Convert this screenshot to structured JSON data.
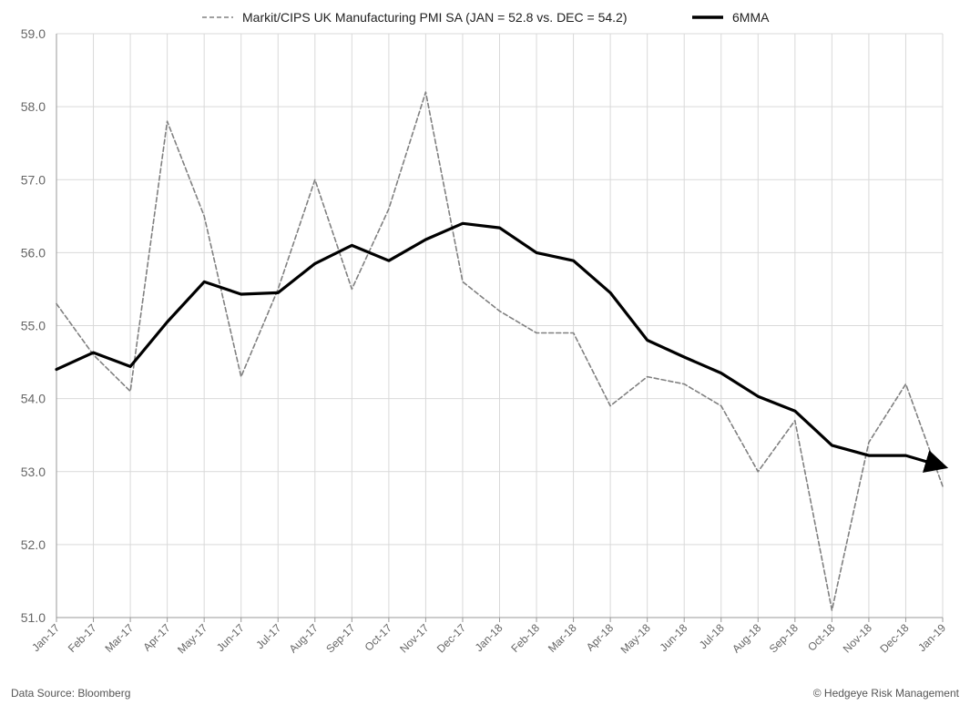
{
  "chart_data": {
    "type": "line",
    "categories": [
      "Jan-17",
      "Feb-17",
      "Mar-17",
      "Apr-17",
      "May-17",
      "Jun-17",
      "Jul-17",
      "Aug-17",
      "Sep-17",
      "Oct-17",
      "Nov-17",
      "Dec-17",
      "Jan-18",
      "Feb-18",
      "Mar-18",
      "Apr-18",
      "May-18",
      "Jun-18",
      "Jul-18",
      "Aug-18",
      "Sep-18",
      "Oct-18",
      "Nov-18",
      "Dec-18",
      "Jan-19"
    ],
    "series": [
      {
        "name": "Markit/CIPS UK Manufacturing PMI SA (JAN = 52.8 vs. DEC = 54.2)",
        "style": "dashed",
        "color": "#808080",
        "values": [
          55.3,
          54.6,
          54.1,
          57.8,
          56.5,
          54.3,
          55.5,
          57.0,
          55.5,
          56.6,
          58.2,
          55.6,
          55.2,
          54.9,
          54.9,
          53.9,
          54.3,
          54.2,
          53.9,
          53.0,
          53.7,
          51.1,
          53.4,
          54.2,
          52.8
        ]
      },
      {
        "name": "6MMA",
        "style": "solid",
        "color": "#000000",
        "values": [
          54.4,
          54.63,
          54.44,
          55.05,
          55.6,
          55.43,
          55.45,
          55.85,
          56.1,
          55.89,
          56.18,
          56.4,
          56.34,
          56.0,
          55.89,
          55.45,
          54.8,
          54.57,
          54.35,
          54.03,
          53.83,
          53.36,
          53.22,
          53.22,
          53.07
        ]
      }
    ],
    "y_ticks": [
      "59.0",
      "58.0",
      "57.0",
      "56.0",
      "55.0",
      "54.0",
      "53.0",
      "52.0",
      "51.0"
    ],
    "ylim": [
      51.0,
      59.0
    ],
    "grid": true,
    "legend_position": "top-center",
    "end_arrow_on": "6MMA"
  },
  "footer": {
    "source": "Data Source: Bloomberg",
    "copyright": "© Hedgeye Risk Management"
  }
}
